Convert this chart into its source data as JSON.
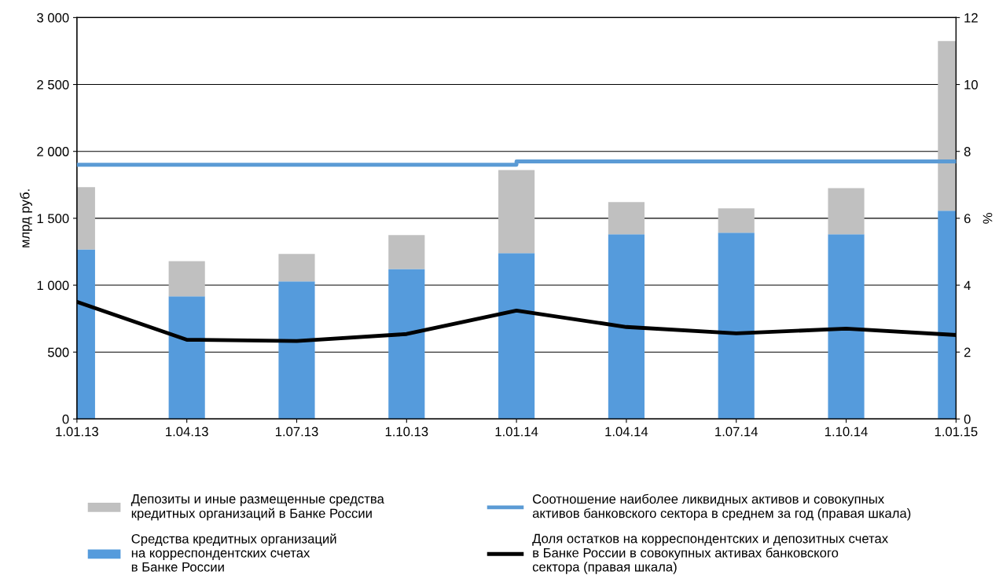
{
  "chart_data": {
    "type": "bar",
    "stacked": true,
    "ylabel": "млрд руб.",
    "y2label": "%",
    "categories": [
      "1.01.13",
      "1.04.13",
      "1.07.13",
      "1.10.13",
      "1.01.14",
      "1.04.14",
      "1.07.14",
      "1.10.14",
      "1.01.15"
    ],
    "series": [
      {
        "name": "Средства кредитных организаций\nна корреспондентских счетах\nв Банке России",
        "color": "#559bdc",
        "values": [
          1268,
          916,
          1028,
          1121,
          1239,
          1380,
          1392,
          1380,
          1556
        ]
      },
      {
        "name": "Депозиты и иные размещенные средства\nкредитных организаций в Банке России",
        "color": "#c0c0c0",
        "values": [
          464,
          264,
          205,
          253,
          622,
          241,
          182,
          346,
          1268
        ]
      },
      {
        "name": "Соотношение наиболее ликвидных активов и совокупных\nактивов банковского сектора в среднем за год (правая шкала)",
        "type": "step",
        "axis": "y2",
        "color": "#5b9bd5",
        "values": [
          7.6,
          7.6,
          7.6,
          7.6,
          7.7,
          7.7,
          7.7,
          7.7,
          7.7
        ]
      },
      {
        "name": "Доля остатков на корреспондентских и депозитных счетах\nв Банке России в совокупных активах банковского\nсектора (правая шкала)",
        "type": "line",
        "axis": "y2",
        "color": "#000000",
        "values": [
          3.5,
          2.37,
          2.33,
          2.54,
          3.24,
          2.75,
          2.56,
          2.7,
          2.51
        ]
      }
    ],
    "ylim": [
      0,
      3000
    ],
    "yticks": [
      {
        "value": 0,
        "label": "0"
      },
      {
        "value": 500,
        "label": "500"
      },
      {
        "value": 1000,
        "label": "1 000"
      },
      {
        "value": 1500,
        "label": "1 500"
      },
      {
        "value": 2000,
        "label": "2 000"
      },
      {
        "value": 2500,
        "label": "2 500"
      },
      {
        "value": 3000,
        "label": "3 000"
      }
    ],
    "y2lim": [
      0,
      12
    ],
    "y2ticks": [
      0,
      2,
      4,
      6,
      8,
      10,
      12
    ],
    "grid": "y",
    "legend": "bottom",
    "marker": "none"
  }
}
